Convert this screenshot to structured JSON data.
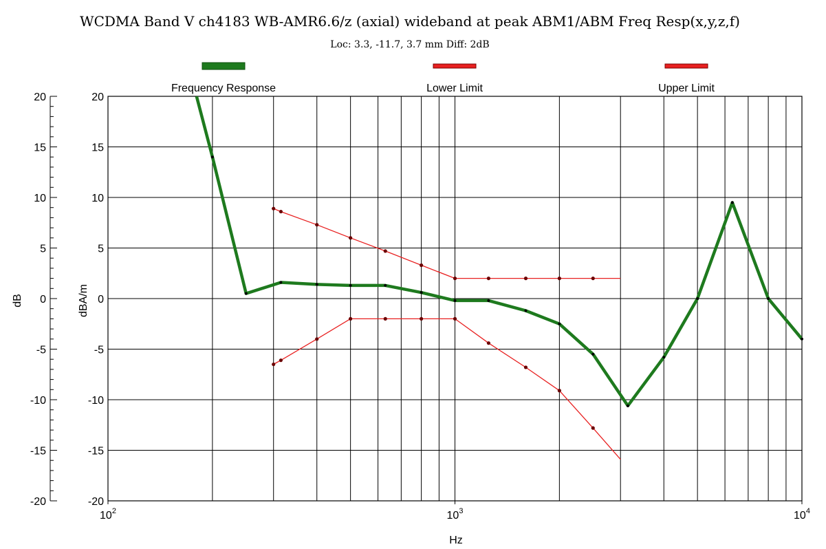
{
  "chart_data": {
    "type": "line",
    "title": "WCDMA Band V ch4183 WB-AMR6.6/z (axial) wideband at peak ABM1/ABM Freq Resp(x,y,z,f)",
    "subtitle": "Loc: 3.3, -11.7, 3.7 mm Diff: 2dB",
    "xlabel": "Hz",
    "ylabel_outer": "dB",
    "ylabel_inner": "dBA/m",
    "x_scale": "log",
    "xlim": [
      100,
      10000
    ],
    "ylim": [
      -20,
      20
    ],
    "x_ticks": [
      {
        "base": "10",
        "exp": "2"
      },
      {
        "base": "10",
        "exp": "3"
      },
      {
        "base": "10",
        "exp": "4"
      }
    ],
    "y_ticks": [
      "20",
      "15",
      "10",
      "5",
      "0",
      "-5",
      "-10",
      "-15",
      "-20"
    ],
    "grid": true,
    "legend_position": "top",
    "series": [
      {
        "name": "Frequency Response",
        "color": "#1e7a1e",
        "x": [
          180,
          200,
          250,
          315,
          400,
          500,
          630,
          800,
          1000,
          1250,
          1600,
          2000,
          2500,
          3150,
          4000,
          5000,
          6300,
          8000,
          10000
        ],
        "y": [
          20,
          14,
          0.5,
          1.6,
          1.4,
          1.3,
          1.3,
          0.6,
          -0.2,
          -0.2,
          -1.2,
          -2.5,
          -5.5,
          -10.6,
          -5.8,
          0,
          9.5,
          0,
          -4
        ]
      },
      {
        "name": "Lower Limit",
        "color": "#e82020",
        "x": [
          300,
          315,
          400,
          500,
          630,
          800,
          1000,
          1250,
          1600,
          2000,
          2500,
          3000
        ],
        "y": [
          -6.5,
          -6.1,
          -4,
          -2,
          -2,
          -2,
          -2,
          -4.4,
          -6.8,
          -9.1,
          -12.8,
          -15.9
        ]
      },
      {
        "name": "Upper Limit",
        "color": "#e82020",
        "x": [
          300,
          315,
          400,
          500,
          630,
          800,
          1000,
          1250,
          1600,
          2000,
          2500,
          3000
        ],
        "y": [
          8.9,
          8.6,
          7.3,
          6,
          4.7,
          3.3,
          2,
          2,
          2,
          2,
          2,
          2
        ]
      }
    ]
  }
}
